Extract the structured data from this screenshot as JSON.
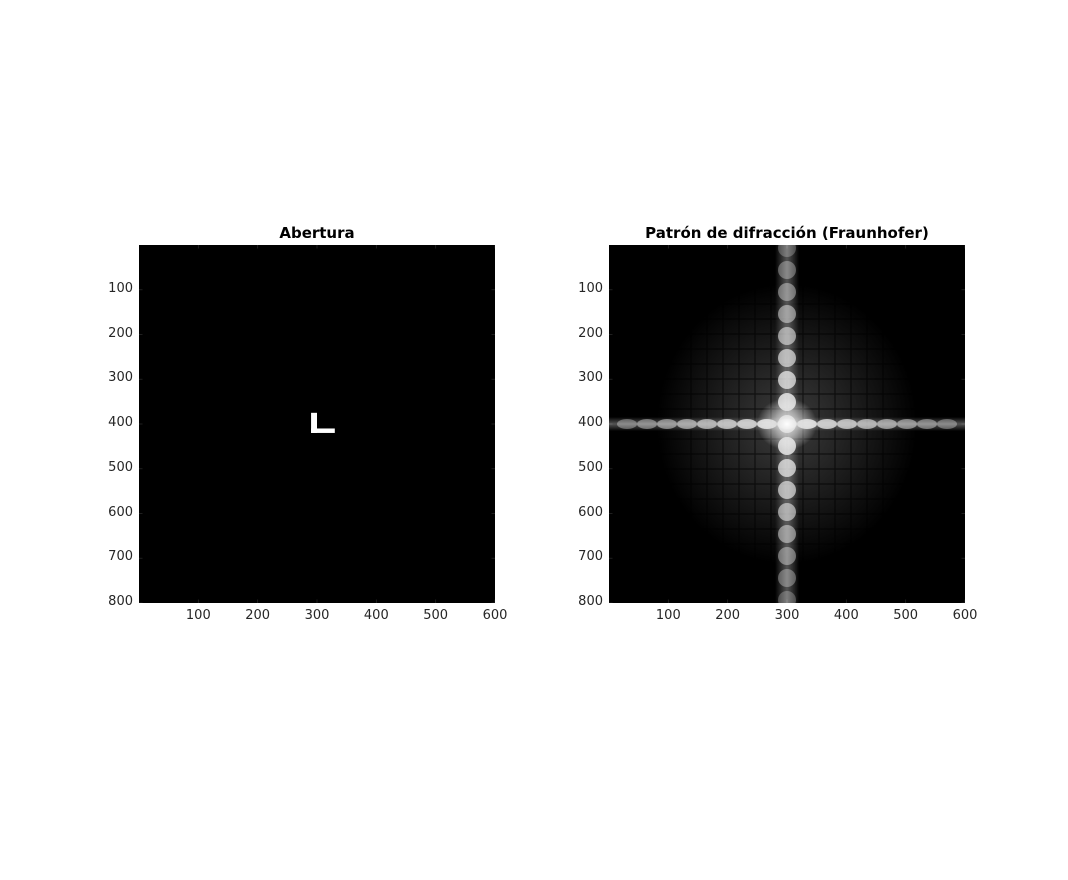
{
  "chart_data": [
    {
      "type": "heatmap",
      "title": "Abertura",
      "xlim": [
        0,
        600
      ],
      "ylim": [
        0,
        800
      ],
      "y_direction": "reversed",
      "colormap": "gray",
      "x_ticks": [
        "100",
        "200",
        "300",
        "400",
        "500",
        "600"
      ],
      "y_ticks": [
        "100",
        "200",
        "300",
        "400",
        "500",
        "600",
        "700",
        "800"
      ],
      "shapes": [
        {
          "name": "L-aperture",
          "vertical_bar": {
            "x": [
              290,
              300
            ],
            "y": [
              375,
              420
            ]
          },
          "horizontal_bar": {
            "x": [
              290,
              330
            ],
            "y": [
              410,
              420
            ]
          },
          "value": 1
        }
      ],
      "background_value": 0
    },
    {
      "type": "heatmap",
      "title": "Patrón de difracción (Fraunhofer)",
      "xlim": [
        0,
        600
      ],
      "ylim": [
        0,
        800
      ],
      "y_direction": "reversed",
      "colormap": "gray",
      "x_ticks": [
        "100",
        "200",
        "300",
        "400",
        "500",
        "600"
      ],
      "y_ticks": [
        "100",
        "200",
        "300",
        "400",
        "500",
        "600",
        "700",
        "800"
      ],
      "peak": {
        "x": 300,
        "y": 400
      },
      "features": [
        {
          "name": "vertical-streak",
          "x": 300,
          "orientation": "vertical"
        },
        {
          "name": "horizontal-streak",
          "y": 400,
          "orientation": "horizontal"
        }
      ]
    }
  ]
}
